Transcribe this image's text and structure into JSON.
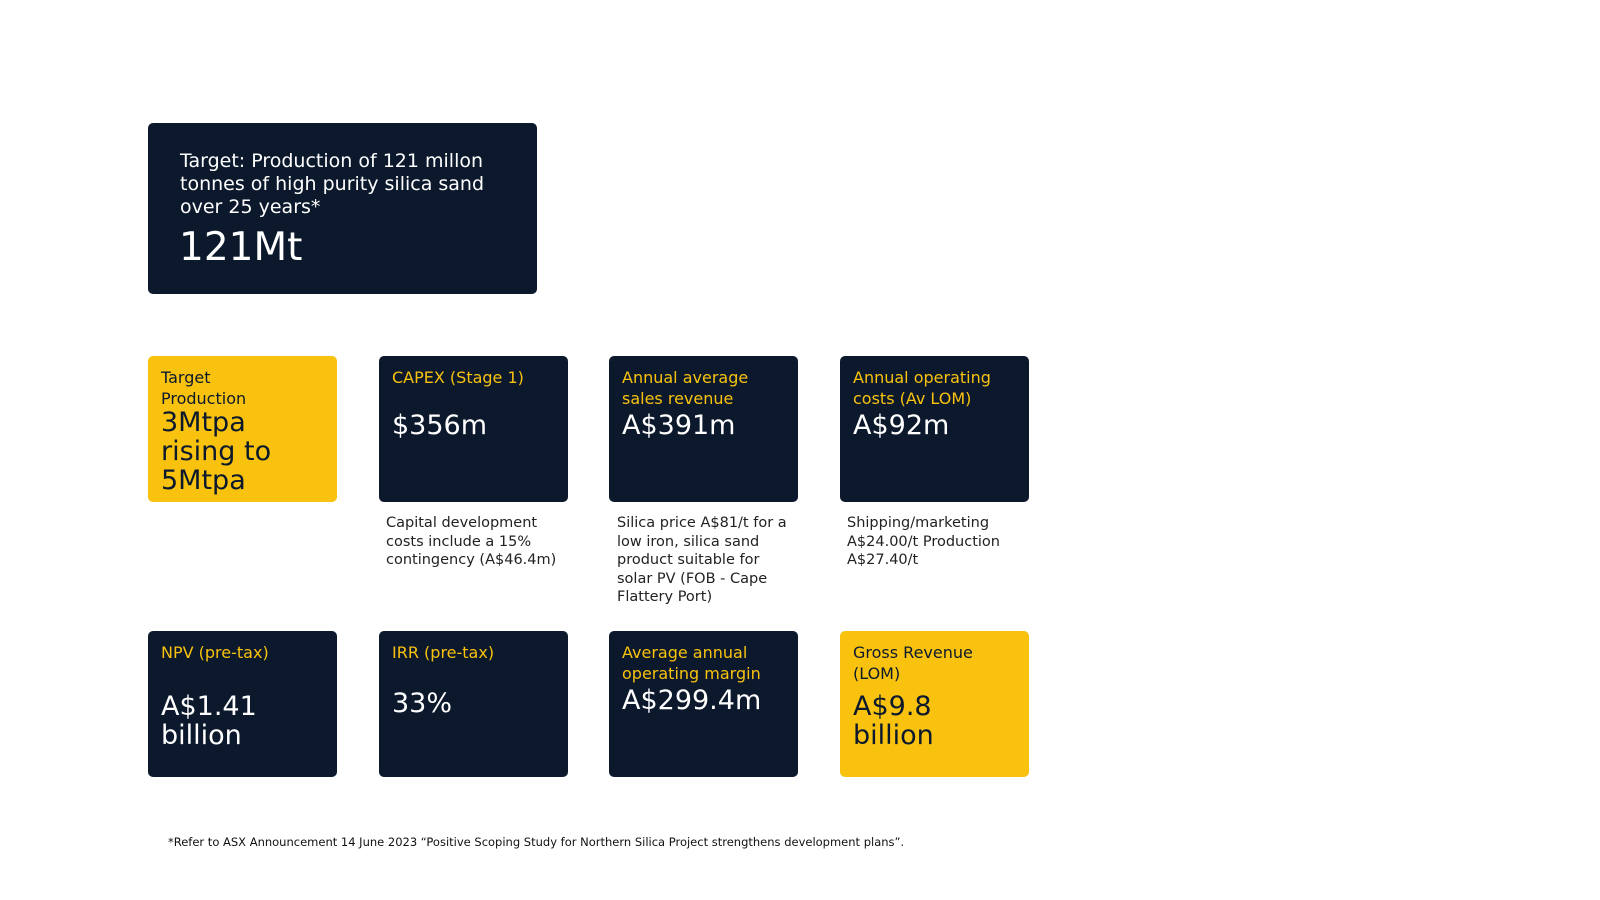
{
  "hero": {
    "label": "Target: Production of 121 millon tonnes of high purity silica sand over 25 years*",
    "value": "121Mt"
  },
  "row1": [
    {
      "label": "Target Production",
      "value": "3Mtpa rising to 5Mtpa",
      "note": ""
    },
    {
      "label": "CAPEX (Stage 1)",
      "value": "$356m",
      "note": "Capital development costs include a 15% contingency (A$46.4m)"
    },
    {
      "label": "Annual average sales revenue",
      "value": "A$391m",
      "note": "Silica price A$81/t for a low iron, silica sand product suitable for solar PV (FOB - Cape Flattery Port)"
    },
    {
      "label": "Annual operating costs (Av LOM)",
      "value": "A$92m",
      "note": "Shipping/marketing A$24.00/t Production A$27.40/t"
    }
  ],
  "row2": [
    {
      "label": "NPV (pre-tax)",
      "value": "A$1.41 billion"
    },
    {
      "label": "IRR (pre-tax)",
      "value": "33%"
    },
    {
      "label": "Average annual operating margin",
      "value": "A$299.4m"
    },
    {
      "label": "Gross Revenue (LOM)",
      "value": "A$9.8 billion"
    }
  ],
  "footnote": "*Refer to ASX Announcement 14 June 2023 “Positive Scoping Study for Northern Silica Project strengthens development plans”.",
  "colors": {
    "navy": "#0c192d",
    "gold": "#f8c20e"
  }
}
